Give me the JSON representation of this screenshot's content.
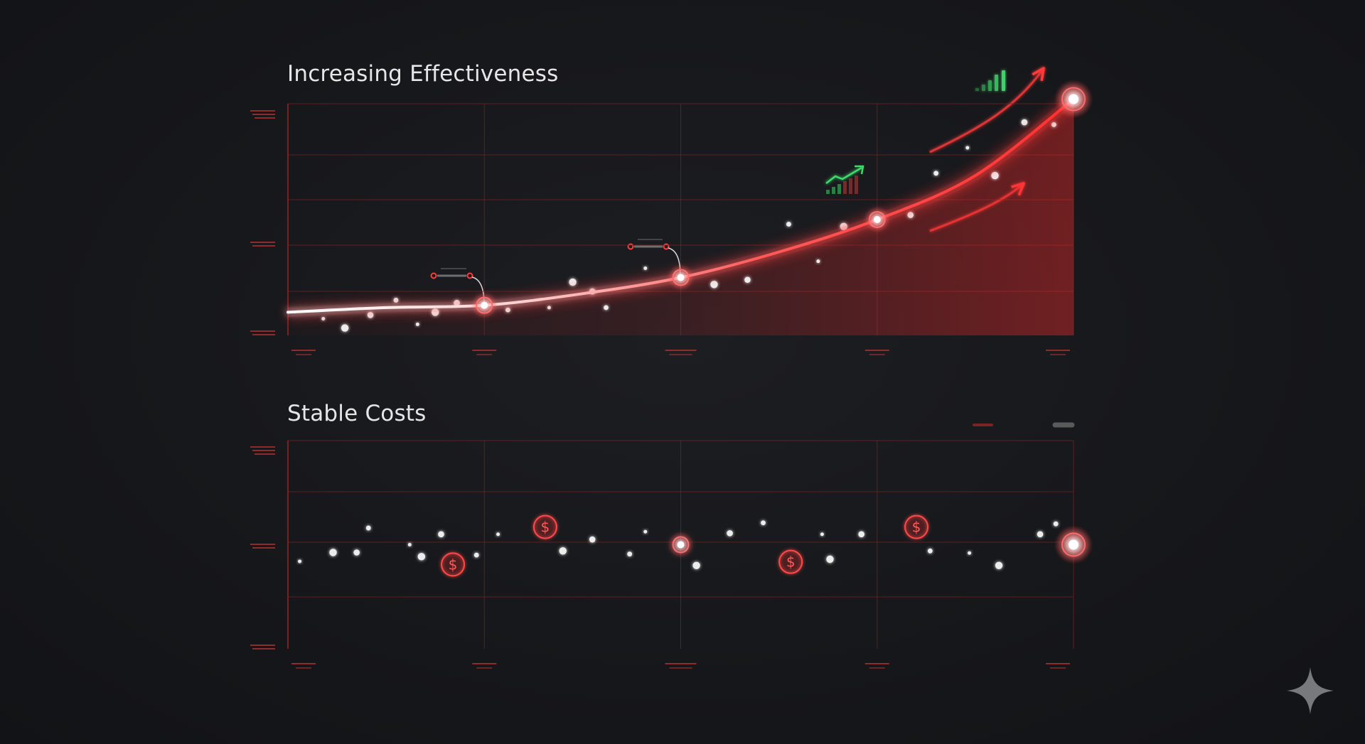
{
  "colors": {
    "background": "#17181b",
    "accent_red": "#ff3b3b",
    "grid_red": "#7a2020",
    "point_white": "#ffffff",
    "indicator_green": "#3ddc6a",
    "title_text": "#e6e6e6"
  },
  "icons": {
    "watermark": "sparkle-icon",
    "growth": "bar-growth-icon",
    "signal": "signal-bars-icon",
    "cost_marker": "dollar-coin-icon"
  },
  "chart_data": [
    {
      "type": "line",
      "title": "Increasing Effectiveness",
      "xlabel": "",
      "ylabel": "",
      "xlim": [
        0,
        4
      ],
      "ylim": [
        0,
        5
      ],
      "grid": true,
      "series": [
        {
          "x": [
            0,
            0.5,
            1,
            1.5,
            2,
            2.5,
            3,
            3.5,
            4
          ],
          "values": [
            0.5,
            0.6,
            0.65,
            0.9,
            1.25,
            1.8,
            2.5,
            3.45,
            5.1
          ]
        }
      ],
      "highlight_points": [
        {
          "x": 1,
          "y": 0.65
        },
        {
          "x": 2,
          "y": 1.25
        },
        {
          "x": 3,
          "y": 2.5
        },
        {
          "x": 4,
          "y": 5.1
        }
      ],
      "scatter_points": [
        {
          "x": 0.18,
          "y": 0.36
        },
        {
          "x": 0.29,
          "y": 0.16
        },
        {
          "x": 0.42,
          "y": 0.44
        },
        {
          "x": 0.55,
          "y": 0.76
        },
        {
          "x": 0.66,
          "y": 0.24
        },
        {
          "x": 0.75,
          "y": 0.5
        },
        {
          "x": 0.86,
          "y": 0.7
        },
        {
          "x": 1.12,
          "y": 0.55
        },
        {
          "x": 1.33,
          "y": 0.6
        },
        {
          "x": 1.45,
          "y": 1.15
        },
        {
          "x": 1.55,
          "y": 0.95
        },
        {
          "x": 1.62,
          "y": 0.6
        },
        {
          "x": 1.82,
          "y": 1.45
        },
        {
          "x": 2.17,
          "y": 1.1
        },
        {
          "x": 2.34,
          "y": 1.2
        },
        {
          "x": 2.55,
          "y": 2.4
        },
        {
          "x": 2.7,
          "y": 1.6
        },
        {
          "x": 2.83,
          "y": 2.35
        },
        {
          "x": 3.17,
          "y": 2.6
        },
        {
          "x": 3.3,
          "y": 3.5
        },
        {
          "x": 3.46,
          "y": 4.05
        },
        {
          "x": 3.6,
          "y": 3.45
        },
        {
          "x": 3.75,
          "y": 4.6
        },
        {
          "x": 3.9,
          "y": 4.55
        }
      ]
    },
    {
      "type": "line",
      "title": "Stable Costs",
      "xlabel": "",
      "ylabel": "",
      "xlim": [
        0,
        4
      ],
      "ylim": [
        0,
        4
      ],
      "grid": true,
      "series": [
        {
          "x": [
            0,
            0.5,
            1,
            1.5,
            2,
            2.5,
            3,
            3.5,
            4
          ],
          "values": [
            2,
            2,
            2,
            2,
            2,
            2,
            2,
            2,
            2
          ]
        }
      ],
      "highlight_points": [
        {
          "x": 2,
          "y": 2
        },
        {
          "x": 4,
          "y": 2
        }
      ],
      "cost_markers": [
        {
          "x": 0.84,
          "y": 1.62
        },
        {
          "x": 1.31,
          "y": 2.34
        },
        {
          "x": 2.56,
          "y": 1.67
        },
        {
          "x": 3.2,
          "y": 2.34
        }
      ],
      "scatter_points": [
        {
          "x": 0.06,
          "y": 1.68
        },
        {
          "x": 0.23,
          "y": 1.85
        },
        {
          "x": 0.35,
          "y": 1.85
        },
        {
          "x": 0.41,
          "y": 2.32
        },
        {
          "x": 0.62,
          "y": 2.0
        },
        {
          "x": 0.68,
          "y": 1.77
        },
        {
          "x": 0.78,
          "y": 2.2
        },
        {
          "x": 0.96,
          "y": 1.8
        },
        {
          "x": 1.07,
          "y": 2.2
        },
        {
          "x": 1.4,
          "y": 1.88
        },
        {
          "x": 1.55,
          "y": 2.1
        },
        {
          "x": 1.74,
          "y": 1.82
        },
        {
          "x": 1.82,
          "y": 2.25
        },
        {
          "x": 2.08,
          "y": 1.6
        },
        {
          "x": 2.25,
          "y": 2.22
        },
        {
          "x": 2.42,
          "y": 2.42
        },
        {
          "x": 2.72,
          "y": 2.2
        },
        {
          "x": 2.76,
          "y": 1.72
        },
        {
          "x": 2.92,
          "y": 2.2
        },
        {
          "x": 3.27,
          "y": 1.88
        },
        {
          "x": 3.47,
          "y": 1.84
        },
        {
          "x": 3.62,
          "y": 1.6
        },
        {
          "x": 3.83,
          "y": 2.2
        },
        {
          "x": 3.91,
          "y": 2.4
        }
      ]
    }
  ]
}
